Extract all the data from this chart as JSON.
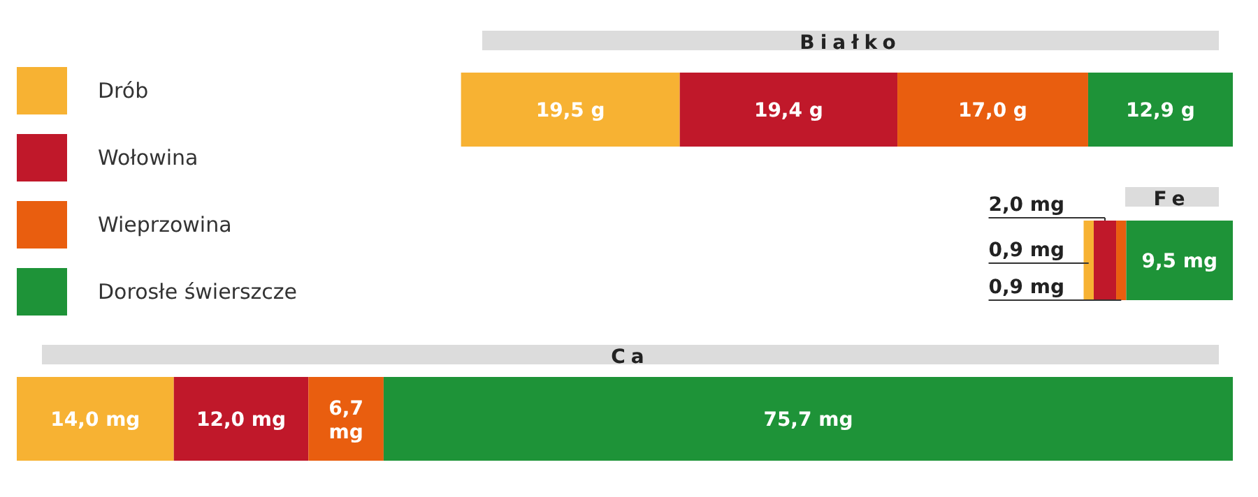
{
  "chart_data": [
    {
      "type": "bar",
      "title": "Białko",
      "orientation": "horizontal",
      "stacked": true,
      "categories": [
        null
      ],
      "legend": "left",
      "series": [
        {
          "name": "Drób",
          "color": "#f7b233",
          "values": [
            19.5
          ],
          "value_labels": [
            "19,5 g"
          ]
        },
        {
          "name": "Wołowina",
          "color": "#c0182a",
          "values": [
            19.4
          ],
          "value_labels": [
            "19,4 g"
          ]
        },
        {
          "name": "Wieprzowina",
          "color": "#e95e0f",
          "values": [
            17.0
          ],
          "value_labels": [
            "17,0 g"
          ]
        },
        {
          "name": "Dorosłe świerszcze",
          "color": "#1e9338",
          "values": [
            12.9
          ],
          "value_labels": [
            "12,9 g"
          ]
        }
      ]
    },
    {
      "type": "bar",
      "title": "Fe",
      "orientation": "horizontal",
      "stacked": true,
      "categories": [
        null
      ],
      "series": [
        {
          "color": "#f7b233",
          "values": [
            0.9
          ],
          "value_labels": [
            "0,9 mg"
          ]
        },
        {
          "color": "#c0182a",
          "values": [
            2.0
          ],
          "value_labels": [
            "2,0 mg"
          ]
        },
        {
          "color": "#e95e0f",
          "values": [
            0.9
          ],
          "value_labels": [
            "0,9 mg"
          ]
        },
        {
          "color": "#1e9338",
          "values": [
            9.5
          ],
          "value_labels": [
            "9,5 mg"
          ]
        }
      ]
    },
    {
      "type": "bar",
      "title": "Ca",
      "orientation": "horizontal",
      "stacked": true,
      "categories": [
        null
      ],
      "series": [
        {
          "color": "#f7b233",
          "values": [
            14.0
          ],
          "value_labels": [
            "14,0 mg"
          ]
        },
        {
          "color": "#c0182a",
          "values": [
            12.0
          ],
          "value_labels": [
            "12,0 mg"
          ]
        },
        {
          "color": "#e95e0f",
          "values": [
            6.7
          ],
          "value_labels": [
            "6,7 mg"
          ]
        },
        {
          "color": "#1e9338",
          "values": [
            75.7
          ],
          "value_labels": [
            "75,7 mg"
          ]
        }
      ]
    }
  ]
}
